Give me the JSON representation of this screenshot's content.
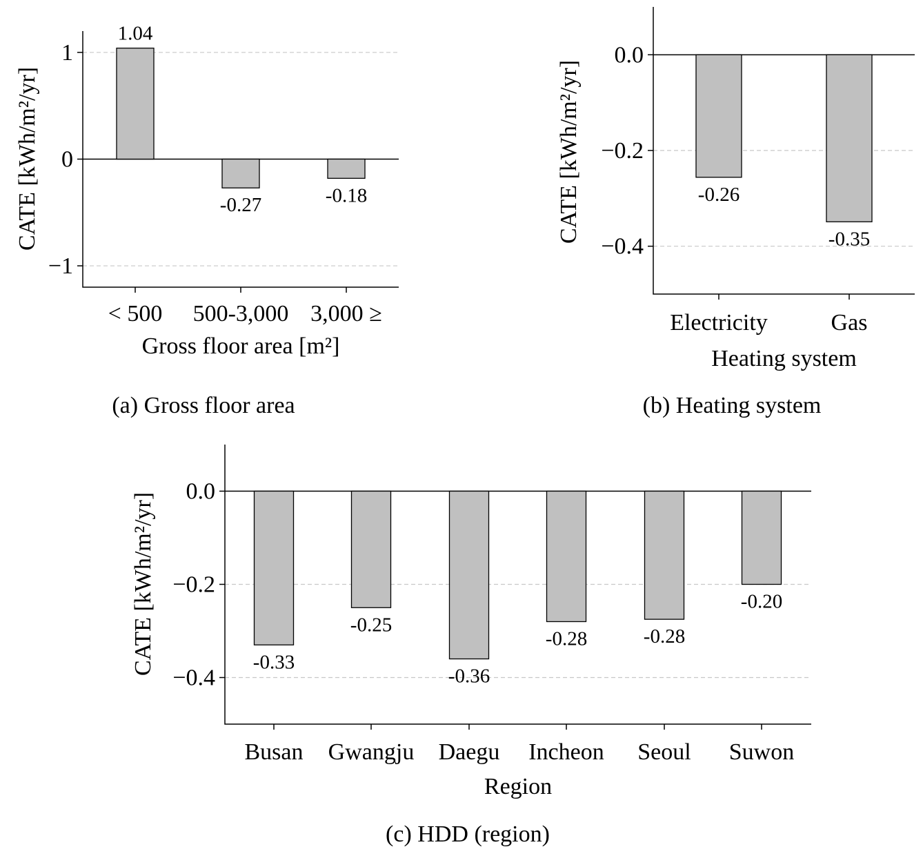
{
  "chart_data": [
    {
      "type": "bar",
      "caption": "(a) Gross floor area",
      "xlabel": "Gross floor area [m²]",
      "ylabel": "CATE [kWh/m²/yr]",
      "categories": [
        "< 500",
        "500-3,000",
        "3,000 ≥"
      ],
      "values": [
        1.04,
        -0.27,
        -0.18
      ],
      "value_labels": [
        "1.04",
        "-0.27",
        "-0.18"
      ],
      "ylim": [
        -1.2,
        1.2
      ],
      "yticks": [
        -1,
        0,
        1
      ],
      "ytick_labels": [
        "−1",
        "0",
        "1"
      ],
      "grid": true
    },
    {
      "type": "bar",
      "caption": "(b) Heating system",
      "xlabel": "Heating system",
      "ylabel": "CATE [kWh/m²/yr]",
      "categories": [
        "Electricity",
        "Gas"
      ],
      "values": [
        -0.256,
        -0.349
      ],
      "value_labels": [
        "-0.26",
        "-0.35"
      ],
      "ylim": [
        -0.5,
        0.1
      ],
      "yticks": [
        -0.4,
        -0.2,
        0.0
      ],
      "ytick_labels": [
        "−0.4",
        "−0.2",
        "0.0"
      ],
      "grid": true
    },
    {
      "type": "bar",
      "caption": "(c) HDD (region)",
      "xlabel": "Region",
      "ylabel": "CATE [kWh/m²/yr]",
      "categories": [
        "Busan",
        "Gwangju",
        "Daegu",
        "Incheon",
        "Seoul",
        "Suwon"
      ],
      "values": [
        -0.33,
        -0.25,
        -0.36,
        -0.28,
        -0.275,
        -0.2
      ],
      "value_labels": [
        "-0.33",
        "-0.25",
        "-0.36",
        "-0.28",
        "-0.28",
        "-0.20"
      ],
      "ylim": [
        -0.5,
        0.1
      ],
      "yticks": [
        -0.4,
        -0.2,
        0.0
      ],
      "ytick_labels": [
        "−0.4",
        "−0.2",
        "0.0"
      ],
      "grid": true
    }
  ]
}
